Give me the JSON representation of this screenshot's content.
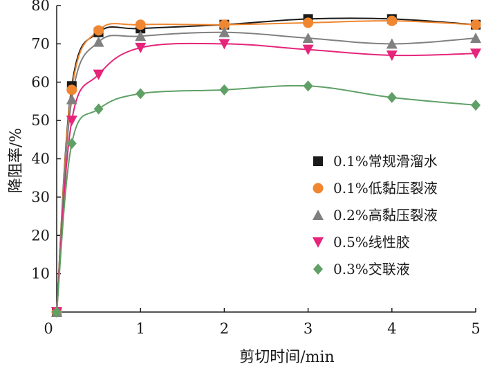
{
  "chart_data": {
    "type": "line",
    "xlabel": "剪切时间/min",
    "ylabel": "降阻率/%",
    "xlim": [
      0,
      5
    ],
    "ylim": [
      0,
      80
    ],
    "x_ticks": [
      "0",
      "1",
      "2",
      "3",
      "4",
      "5"
    ],
    "y_ticks": [
      "10",
      "20",
      "30",
      "40",
      "50",
      "60",
      "70",
      "80"
    ],
    "grid": false,
    "legend_position": "right",
    "series": [
      {
        "name": "0.1%常规滑溜水",
        "marker": "square",
        "marker_color": "#1a1a1a",
        "line_color": "#1a1a1a",
        "x": [
          0,
          0.18,
          0.5,
          1,
          2,
          3,
          4,
          5
        ],
        "y": [
          0,
          59,
          73,
          74,
          75,
          76.5,
          76.5,
          75
        ]
      },
      {
        "name": "0.1%低黏压裂液",
        "marker": "circle",
        "marker_color": "#f0862f",
        "line_color": "#f0862f",
        "x": [
          0,
          0.18,
          0.5,
          1,
          2,
          3,
          4,
          5
        ],
        "y": [
          0,
          58,
          73.5,
          75,
          75,
          75.5,
          76,
          75
        ]
      },
      {
        "name": "0.2%高黏压裂液",
        "marker": "triangle-up",
        "marker_color": "#808080",
        "line_color": "#808080",
        "x": [
          0,
          0.18,
          0.5,
          1,
          2,
          3,
          4,
          5
        ],
        "y": [
          0,
          55.5,
          70.5,
          72,
          73,
          71.5,
          70,
          71.5
        ]
      },
      {
        "name": "0.5%线性胶",
        "marker": "triangle-down",
        "marker_color": "#e5247a",
        "line_color": "#e5247a",
        "x": [
          0,
          0.18,
          0.5,
          1,
          2,
          3,
          4,
          5
        ],
        "y": [
          0,
          50,
          62,
          69,
          70,
          68.5,
          67,
          67.5
        ]
      },
      {
        "name": "0.3%交联液",
        "marker": "diamond",
        "marker_color": "#5fa066",
        "line_color": "#5fa066",
        "x": [
          0,
          0.18,
          0.5,
          1,
          2,
          3,
          4,
          5
        ],
        "y": [
          0,
          44,
          53,
          57,
          58,
          59,
          56,
          54
        ]
      }
    ]
  }
}
